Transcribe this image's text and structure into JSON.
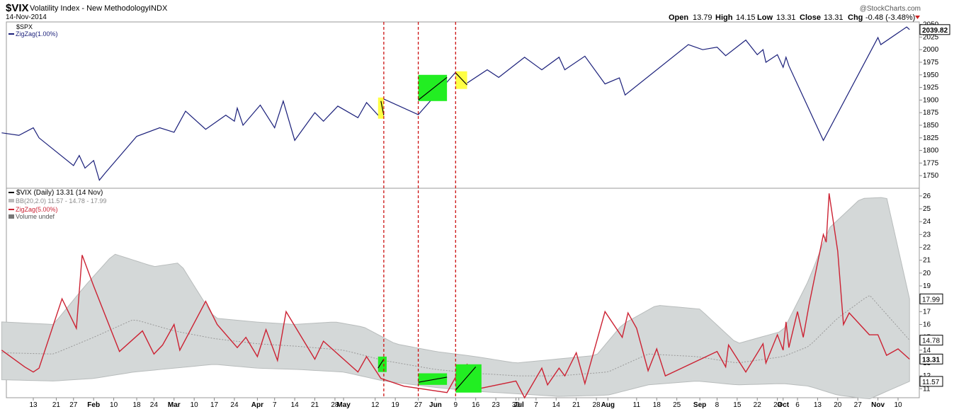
{
  "header": {
    "symbol": "$VIX",
    "title": "Volatility Index - New Methodology",
    "exchange": "INDX",
    "date": "14-Nov-2014",
    "watermark": "@StockCharts.com",
    "open_label": "Open",
    "open": "13.79",
    "high_label": "High",
    "high": "14.15",
    "low_label": "Low",
    "low": "13.31",
    "close_label": "Close",
    "close": "13.31",
    "chg_label": "Chg",
    "chg": "-0.48 (-3.48%)"
  },
  "colors": {
    "spx_line": "#1a1f7a",
    "vix_line": "#cc2233",
    "bands": "#d4d8d8",
    "highlight_green": "#22ee22",
    "highlight_yellow": "#ffff44",
    "marker_line": "#cc1111"
  },
  "chart_data": [
    {
      "type": "line",
      "legend": [
        "$SPX",
        "ZigZag(1.00%)"
      ],
      "ylim": [
        1725,
        2055
      ],
      "yticks": [
        1750,
        1775,
        1800,
        1825,
        1850,
        1875,
        1900,
        1925,
        1950,
        1975,
        2000,
        2025,
        2050
      ],
      "last_value": "2039.82",
      "series": [
        {
          "name": "ZigZag(1.00%)",
          "x": [
            "2014-01-02",
            "2014-01-08",
            "2014-01-13",
            "2014-01-15",
            "2014-01-27",
            "2014-01-29",
            "2014-01-31",
            "2014-02-03",
            "2014-02-05",
            "2014-02-07",
            "2014-02-18",
            "2014-02-26",
            "2014-03-03",
            "2014-03-07",
            "2014-03-14",
            "2014-03-21",
            "2014-03-24",
            "2014-03-25",
            "2014-03-27",
            "2014-04-02",
            "2014-04-07",
            "2014-04-10",
            "2014-04-14",
            "2014-04-21",
            "2014-04-24",
            "2014-04-29",
            "2014-05-06",
            "2014-05-09",
            "2014-05-13",
            "2014-05-15",
            "2014-05-27",
            "2014-06-09",
            "2014-06-12",
            "2014-06-20",
            "2014-06-24",
            "2014-07-03",
            "2014-07-09",
            "2014-07-15",
            "2014-07-17",
            "2014-07-24",
            "2014-07-31",
            "2014-08-05",
            "2014-08-07",
            "2014-08-29",
            "2014-09-03",
            "2014-09-08",
            "2014-09-11",
            "2014-09-18",
            "2014-09-22",
            "2014-09-24",
            "2014-09-25",
            "2014-09-29",
            "2014-10-01",
            "2014-10-02",
            "2014-10-03",
            "2014-10-15",
            "2014-11-03",
            "2014-11-04",
            "2014-11-13",
            "2014-11-14"
          ],
          "values": [
            1835,
            1830,
            1845,
            1825,
            1770,
            1790,
            1765,
            1780,
            1741,
            1755,
            1828,
            1845,
            1836,
            1878,
            1842,
            1870,
            1858,
            1884,
            1850,
            1890,
            1845,
            1898,
            1820,
            1875,
            1858,
            1888,
            1865,
            1895,
            1870,
            1902,
            1871,
            1955,
            1930,
            1960,
            1945,
            1985,
            1960,
            1985,
            1960,
            1987,
            1932,
            1944,
            1910,
            2010,
            2000,
            2005,
            1988,
            2019,
            1990,
            2000,
            1975,
            1990,
            1965,
            1985,
            1968,
            1820,
            2024,
            2010,
            2045,
            2039.82
          ]
        }
      ]
    },
    {
      "type": "line",
      "legend": [
        "$VIX (Daily) 13.31 (14 Nov)",
        "BB(20,2.0) 11.57 - 14.78 - 17.99",
        "ZigZag(5.00%)",
        "Volume undef"
      ],
      "ylim": [
        10.3,
        26.6
      ],
      "yticks": [
        11,
        12,
        13,
        14,
        15,
        16,
        17,
        18,
        19,
        20,
        21,
        22,
        23,
        24,
        25,
        26
      ],
      "value_tags": [
        "17.99",
        "14.78",
        "13.31",
        "11.57"
      ],
      "series": [
        {
          "name": "ZigZag(5.00%)",
          "x": [
            "2014-01-02",
            "2014-01-10",
            "2014-01-13",
            "2014-01-15",
            "2014-01-23",
            "2014-01-28",
            "2014-01-30",
            "2014-02-03",
            "2014-02-12",
            "2014-02-20",
            "2014-02-24",
            "2014-02-27",
            "2014-03-03",
            "2014-03-05",
            "2014-03-14",
            "2014-03-18",
            "2014-03-25",
            "2014-03-28",
            "2014-04-01",
            "2014-04-04",
            "2014-04-08",
            "2014-04-11",
            "2014-04-21",
            "2014-04-24",
            "2014-05-06",
            "2014-05-09",
            "2014-05-14",
            "2014-05-22",
            "2014-06-06",
            "2014-06-09",
            "2014-06-13",
            "2014-06-17",
            "2014-06-30",
            "2014-07-03",
            "2014-07-09",
            "2014-07-11",
            "2014-07-15",
            "2014-07-17",
            "2014-07-21",
            "2014-07-24",
            "2014-07-31",
            "2014-08-06",
            "2014-08-08",
            "2014-08-11",
            "2014-08-15",
            "2014-08-18",
            "2014-08-21",
            "2014-09-08",
            "2014-09-11",
            "2014-09-12",
            "2014-09-18",
            "2014-09-24",
            "2014-09-25",
            "2014-09-29",
            "2014-10-01",
            "2014-10-02",
            "2014-10-03",
            "2014-10-06",
            "2014-10-08",
            "2014-10-10",
            "2014-10-15",
            "2014-10-16",
            "2014-10-17",
            "2014-10-20",
            "2014-10-22",
            "2014-10-24",
            "2014-10-31",
            "2014-11-03",
            "2014-11-06",
            "2014-11-10",
            "2014-11-14"
          ],
          "values": [
            14.0,
            12.7,
            12.3,
            12.6,
            18.0,
            15.7,
            21.4,
            19.0,
            13.9,
            15.5,
            13.7,
            14.4,
            16.0,
            14.0,
            17.8,
            16.0,
            14.2,
            15.0,
            13.5,
            15.6,
            13.2,
            17.0,
            13.3,
            14.7,
            12.3,
            13.5,
            11.8,
            11.2,
            10.7,
            11.9,
            12.9,
            11.0,
            11.6,
            10.3,
            12.6,
            11.3,
            12.6,
            12.0,
            13.8,
            11.4,
            17.0,
            15.0,
            16.9,
            15.7,
            12.4,
            14.1,
            12.0,
            13.9,
            12.7,
            14.4,
            12.3,
            14.5,
            13.0,
            15.2,
            14.0,
            16.2,
            14.2,
            17.0,
            15.0,
            17.5,
            23.0,
            22.4,
            26.2,
            21.7,
            16.0,
            16.9,
            15.2,
            15.2,
            13.6,
            14.1,
            13.3
          ]
        },
        {
          "name": "BB upper",
          "x": [
            "2014-01-02",
            "2014-01-20",
            "2014-01-31",
            "2014-02-10",
            "2014-02-24",
            "2014-03-05",
            "2014-03-17",
            "2014-03-31",
            "2014-04-14",
            "2014-04-28",
            "2014-05-08",
            "2014-05-19",
            "2014-06-02",
            "2014-06-16",
            "2014-06-30",
            "2014-07-14",
            "2014-07-28",
            "2014-08-06",
            "2014-08-18",
            "2014-09-02",
            "2014-09-15",
            "2014-10-01",
            "2014-10-10",
            "2014-10-17",
            "2014-10-28",
            "2014-11-06",
            "2014-11-14"
          ],
          "values": [
            16.2,
            16.0,
            19.0,
            21.5,
            20.5,
            20.8,
            16.5,
            16.2,
            16.0,
            16.2,
            15.8,
            14.5,
            13.9,
            13.5,
            13.0,
            13.3,
            13.6,
            16.0,
            17.5,
            17.2,
            14.5,
            15.5,
            19.5,
            23.5,
            25.8,
            25.9,
            17.99
          ]
        },
        {
          "name": "BB middle",
          "x": [
            "2014-01-02",
            "2014-01-20",
            "2014-02-03",
            "2014-02-17",
            "2014-03-03",
            "2014-03-17",
            "2014-04-01",
            "2014-04-15",
            "2014-05-01",
            "2014-05-15",
            "2014-06-02",
            "2014-06-16",
            "2014-07-01",
            "2014-07-15",
            "2014-08-01",
            "2014-08-15",
            "2014-09-01",
            "2014-09-15",
            "2014-10-01",
            "2014-10-10",
            "2014-10-20",
            "2014-10-31",
            "2014-11-14"
          ],
          "values": [
            13.8,
            13.7,
            15.0,
            16.4,
            15.5,
            14.9,
            14.5,
            14.3,
            14.0,
            13.2,
            12.5,
            12.2,
            12.0,
            12.0,
            12.3,
            13.7,
            13.5,
            13.0,
            13.5,
            14.3,
            16.5,
            18.3,
            14.78
          ]
        },
        {
          "name": "BB lower",
          "x": [
            "2014-01-02",
            "2014-01-20",
            "2014-02-03",
            "2014-02-17",
            "2014-03-03",
            "2014-03-17",
            "2014-04-01",
            "2014-04-15",
            "2014-05-01",
            "2014-05-15",
            "2014-06-02",
            "2014-06-16",
            "2014-07-01",
            "2014-07-15",
            "2014-08-01",
            "2014-08-15",
            "2014-09-01",
            "2014-09-15",
            "2014-10-01",
            "2014-10-10",
            "2014-10-20",
            "2014-10-31",
            "2014-11-14"
          ],
          "values": [
            11.7,
            11.6,
            11.8,
            12.3,
            12.6,
            12.9,
            12.6,
            12.5,
            12.3,
            11.6,
            11.1,
            10.8,
            10.6,
            10.4,
            10.5,
            11.3,
            11.6,
            11.3,
            11.4,
            11.2,
            10.5,
            10.2,
            11.57
          ]
        }
      ]
    }
  ],
  "x_axis": {
    "labels": [
      {
        "date": "2014-01-13",
        "text": "13",
        "bold": false
      },
      {
        "date": "2014-01-21",
        "text": "21",
        "bold": false
      },
      {
        "date": "2014-01-27",
        "text": "27",
        "bold": false
      },
      {
        "date": "2014-02-03",
        "text": "Feb",
        "bold": true
      },
      {
        "date": "2014-02-10",
        "text": "10",
        "bold": false
      },
      {
        "date": "2014-02-18",
        "text": "18",
        "bold": false
      },
      {
        "date": "2014-02-24",
        "text": "24",
        "bold": false
      },
      {
        "date": "2014-03-03",
        "text": "Mar",
        "bold": true
      },
      {
        "date": "2014-03-10",
        "text": "10",
        "bold": false
      },
      {
        "date": "2014-03-17",
        "text": "17",
        "bold": false
      },
      {
        "date": "2014-03-24",
        "text": "24",
        "bold": false
      },
      {
        "date": "2014-04-01",
        "text": "Apr",
        "bold": true
      },
      {
        "date": "2014-04-07",
        "text": "7",
        "bold": false
      },
      {
        "date": "2014-04-14",
        "text": "14",
        "bold": false
      },
      {
        "date": "2014-04-21",
        "text": "21",
        "bold": false
      },
      {
        "date": "2014-04-28",
        "text": "28",
        "bold": false
      },
      {
        "date": "2014-05-01",
        "text": "May",
        "bold": true
      },
      {
        "date": "2014-05-12",
        "text": "12",
        "bold": false
      },
      {
        "date": "2014-05-19",
        "text": "19",
        "bold": false
      },
      {
        "date": "2014-05-27",
        "text": "27",
        "bold": false
      },
      {
        "date": "2014-06-02",
        "text": "Jun",
        "bold": true
      },
      {
        "date": "2014-06-09",
        "text": "9",
        "bold": false
      },
      {
        "date": "2014-06-16",
        "text": "16",
        "bold": false
      },
      {
        "date": "2014-06-23",
        "text": "23",
        "bold": false
      },
      {
        "date": "2014-06-30",
        "text": "30",
        "bold": false
      },
      {
        "date": "2014-07-01",
        "text": "Jul",
        "bold": true
      },
      {
        "date": "2014-07-07",
        "text": "7",
        "bold": false
      },
      {
        "date": "2014-07-14",
        "text": "14",
        "bold": false
      },
      {
        "date": "2014-07-21",
        "text": "21",
        "bold": false
      },
      {
        "date": "2014-07-28",
        "text": "28",
        "bold": false
      },
      {
        "date": "2014-08-01",
        "text": "Aug",
        "bold": true
      },
      {
        "date": "2014-08-11",
        "text": "11",
        "bold": false
      },
      {
        "date": "2014-08-18",
        "text": "18",
        "bold": false
      },
      {
        "date": "2014-08-25",
        "text": "25",
        "bold": false
      },
      {
        "date": "2014-09-02",
        "text": "Sep",
        "bold": true
      },
      {
        "date": "2014-09-08",
        "text": "8",
        "bold": false
      },
      {
        "date": "2014-09-15",
        "text": "15",
        "bold": false
      },
      {
        "date": "2014-09-22",
        "text": "22",
        "bold": false
      },
      {
        "date": "2014-09-29",
        "text": "29",
        "bold": false
      },
      {
        "date": "2014-10-01",
        "text": "Oct",
        "bold": true
      },
      {
        "date": "2014-10-06",
        "text": "6",
        "bold": false
      },
      {
        "date": "2014-10-13",
        "text": "13",
        "bold": false
      },
      {
        "date": "2014-10-20",
        "text": "20",
        "bold": false
      },
      {
        "date": "2014-10-27",
        "text": "27",
        "bold": false
      },
      {
        "date": "2014-11-03",
        "text": "Nov",
        "bold": true
      },
      {
        "date": "2014-11-10",
        "text": "10",
        "bold": false
      }
    ]
  },
  "annotations": {
    "vertical_markers": [
      "2014-05-15",
      "2014-05-27",
      "2014-06-09"
    ],
    "boxes": [
      {
        "panel": 0,
        "color": "yellow",
        "x": [
          "2014-05-13",
          "2014-05-15"
        ],
        "y": [
          1863,
          1905
        ]
      },
      {
        "panel": 0,
        "color": "green",
        "x": [
          "2014-05-27",
          "2014-06-06"
        ],
        "y": [
          1898,
          1950
        ]
      },
      {
        "panel": 0,
        "color": "yellow",
        "x": [
          "2014-06-09",
          "2014-06-13"
        ],
        "y": [
          1922,
          1957
        ]
      },
      {
        "panel": 1,
        "color": "green",
        "x": [
          "2014-05-13",
          "2014-05-16"
        ],
        "y": [
          12.3,
          13.5
        ]
      },
      {
        "panel": 1,
        "color": "green",
        "x": [
          "2014-05-27",
          "2014-06-06"
        ],
        "y": [
          11.3,
          12.2
        ]
      },
      {
        "panel": 1,
        "color": "green",
        "x": [
          "2014-06-09",
          "2014-06-18"
        ],
        "y": [
          10.7,
          12.9
        ]
      }
    ],
    "inner_segments": [
      {
        "panel": 0,
        "x": [
          "2014-05-14",
          "2014-05-15"
        ],
        "y": [
          1898,
          1870
        ]
      },
      {
        "panel": 0,
        "x": [
          "2014-05-27",
          "2014-06-06"
        ],
        "y": [
          1900,
          1945
        ]
      },
      {
        "panel": 0,
        "x": [
          "2014-06-09",
          "2014-06-13"
        ],
        "y": [
          1954,
          1930
        ]
      },
      {
        "panel": 1,
        "x": [
          "2014-05-13",
          "2014-05-15"
        ],
        "y": [
          12.6,
          13.3
        ]
      },
      {
        "panel": 1,
        "x": [
          "2014-05-27",
          "2014-06-06"
        ],
        "y": [
          11.5,
          11.9
        ]
      },
      {
        "panel": 1,
        "x": [
          "2014-06-09",
          "2014-06-16"
        ],
        "y": [
          10.9,
          12.7
        ]
      }
    ]
  }
}
